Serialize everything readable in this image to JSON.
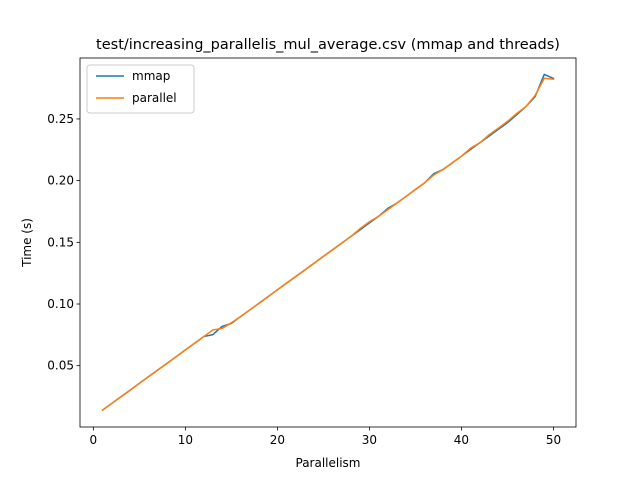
{
  "chart_data": {
    "type": "line",
    "title": "test/increasing_parallelis_mul_average.csv (mmap and threads)",
    "xlabel": "Parallelism",
    "ylabel": "Time (s)",
    "xlim": [
      -1.45,
      52.45
    ],
    "ylim": [
      0.0003,
      0.2994
    ],
    "xticks": [
      0,
      10,
      20,
      30,
      40,
      50
    ],
    "yticks": [
      0.05,
      0.1,
      0.15,
      0.2,
      0.25
    ],
    "ytick_labels": [
      "0.05",
      "0.10",
      "0.15",
      "0.20",
      "0.25"
    ],
    "grid": false,
    "legend_position": "top-left",
    "x": [
      1,
      2,
      3,
      4,
      5,
      6,
      7,
      8,
      9,
      10,
      11,
      12,
      13,
      14,
      15,
      16,
      17,
      18,
      19,
      20,
      21,
      22,
      23,
      24,
      25,
      26,
      27,
      28,
      29,
      30,
      31,
      32,
      33,
      34,
      35,
      36,
      37,
      38,
      39,
      40,
      41,
      42,
      43,
      44,
      45,
      46,
      47,
      48,
      49,
      50
    ],
    "series": [
      {
        "name": "mmap",
        "color": "#1f77b4",
        "values": [
          0.014,
          0.0194,
          0.0248,
          0.0302,
          0.0357,
          0.0411,
          0.0465,
          0.0519,
          0.0573,
          0.0628,
          0.0682,
          0.0736,
          0.0752,
          0.0818,
          0.0843,
          0.0898,
          0.0952,
          0.1006,
          0.106,
          0.1115,
          0.1169,
          0.1223,
          0.1277,
          0.1331,
          0.1386,
          0.144,
          0.1494,
          0.1548,
          0.1602,
          0.1657,
          0.1711,
          0.1775,
          0.1819,
          0.1873,
          0.1928,
          0.1982,
          0.2056,
          0.209,
          0.2144,
          0.2198,
          0.2253,
          0.2307,
          0.2361,
          0.2415,
          0.2469,
          0.2534,
          0.26,
          0.268,
          0.2861,
          0.2829
        ]
      },
      {
        "name": "parallel",
        "color": "#ff7f0e",
        "values": [
          0.014,
          0.0194,
          0.0248,
          0.0302,
          0.0357,
          0.0411,
          0.0465,
          0.0519,
          0.0573,
          0.0628,
          0.0682,
          0.0736,
          0.079,
          0.0802,
          0.0848,
          0.0898,
          0.0952,
          0.1006,
          0.106,
          0.1115,
          0.1169,
          0.1223,
          0.1277,
          0.1331,
          0.1386,
          0.144,
          0.1494,
          0.1548,
          0.1612,
          0.1667,
          0.1711,
          0.1765,
          0.1819,
          0.1873,
          0.1928,
          0.1982,
          0.2046,
          0.209,
          0.2144,
          0.2198,
          0.2263,
          0.2307,
          0.2371,
          0.2425,
          0.248,
          0.2544,
          0.26,
          0.269,
          0.283,
          0.2822
        ]
      }
    ]
  }
}
